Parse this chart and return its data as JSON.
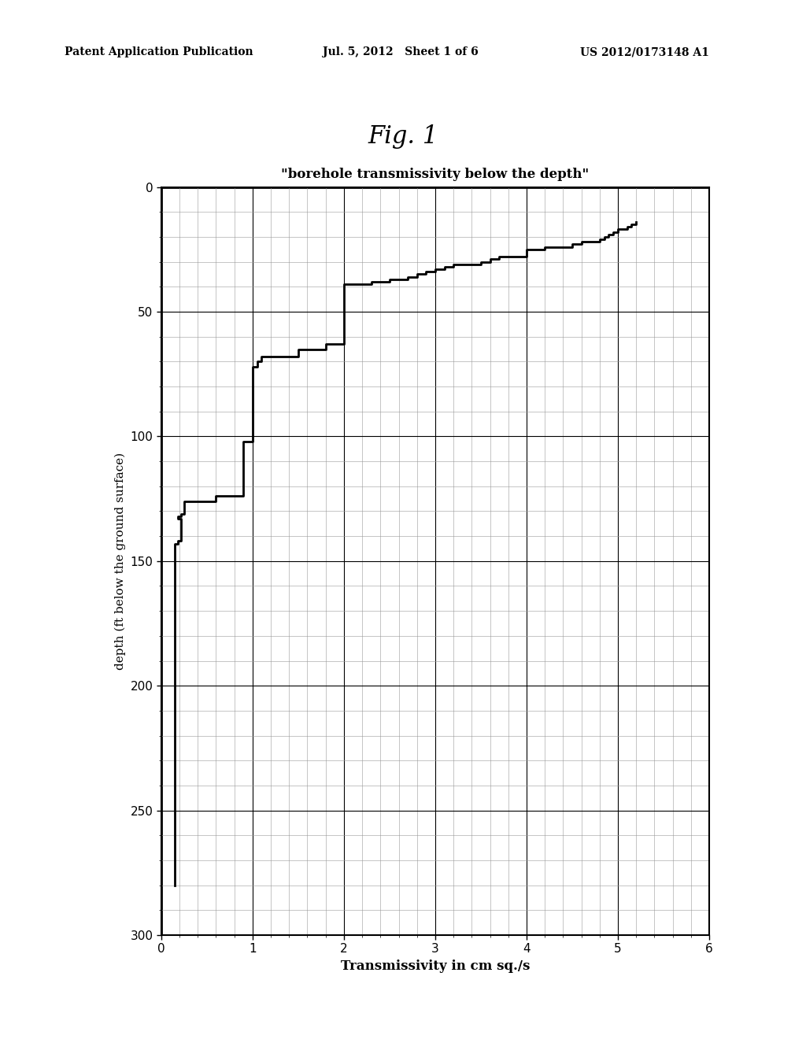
{
  "title": "\"borehole transmissivity below the depth\"",
  "xlabel": "Transmissivity in cm sq./s",
  "ylabel": "depth (ft below the ground surface)",
  "fig_label": "Fig. 1",
  "header_left": "Patent Application Publication",
  "header_center": "Jul. 5, 2012   Sheet 1 of 6",
  "header_right": "US 2012/0173148 A1",
  "xlim": [
    0,
    6
  ],
  "ylim": [
    0,
    300
  ],
  "xticks": [
    0,
    1,
    2,
    3,
    4,
    5,
    6
  ],
  "yticks": [
    0,
    50,
    100,
    150,
    200,
    250,
    300
  ],
  "x_minor_ticks": 5,
  "y_minor_ticks": 5,
  "line_color": "#000000",
  "line_width": 2.0,
  "background_color": "#ffffff",
  "curve_x": [
    0.15,
    0.15,
    0.15,
    0.15,
    0.15,
    0.15,
    0.15,
    0.15,
    0.15,
    0.15,
    0.15,
    0.15,
    0.15,
    0.15,
    0.15,
    0.15,
    0.15,
    0.15,
    0.15,
    0.15,
    0.15,
    0.15,
    0.15,
    0.15,
    0.15,
    0.15,
    0.15,
    0.15,
    0.15,
    0.15,
    0.15,
    0.15,
    0.15,
    0.15,
    0.15,
    0.15,
    0.15,
    0.15,
    0.15,
    0.15,
    0.15,
    0.18,
    0.18,
    0.22,
    0.22,
    0.22,
    0.22,
    0.22,
    0.22,
    0.22,
    0.22,
    0.22,
    0.22,
    0.18,
    0.18,
    0.22,
    0.22,
    0.25,
    0.25,
    0.25,
    0.25,
    0.6,
    0.6,
    0.9,
    0.9,
    0.9,
    0.9,
    0.9,
    0.9,
    0.9,
    0.9,
    0.9,
    0.9,
    0.9,
    0.9,
    1.0,
    1.0,
    1.0,
    1.0,
    1.0,
    1.0,
    1.0,
    1.0,
    1.0,
    1.0,
    1.0,
    1.0,
    1.0,
    1.0,
    1.0,
    1.0,
    1.05,
    1.05,
    1.1,
    1.1,
    1.5,
    1.5,
    1.8,
    1.8,
    2.0,
    2.0,
    2.0,
    2.0,
    2.0,
    2.0,
    2.0,
    2.0,
    2.0,
    2.0,
    2.0,
    2.0,
    2.0,
    2.3,
    2.3,
    2.5,
    2.5,
    2.7,
    2.7,
    2.8,
    2.8,
    2.9,
    2.9,
    3.0,
    3.0,
    3.1,
    3.1,
    3.2,
    3.2,
    3.5,
    3.5,
    3.6,
    3.6,
    3.7,
    3.7,
    4.0,
    4.0,
    4.0,
    4.0,
    4.2,
    4.2,
    4.5,
    4.5,
    4.6,
    4.6,
    4.8,
    4.8,
    4.85,
    4.85,
    4.9,
    4.9,
    4.95,
    4.95,
    5.0,
    5.0,
    5.1,
    5.1,
    5.15,
    5.15,
    5.2,
    5.2
  ],
  "curve_y": [
    280,
    275,
    270,
    265,
    260,
    255,
    250,
    245,
    240,
    235,
    230,
    225,
    220,
    215,
    210,
    205,
    200,
    195,
    190,
    185,
    180,
    180,
    175,
    175,
    173,
    172,
    171,
    170,
    168,
    166,
    164,
    162,
    160,
    158,
    156,
    154,
    152,
    150,
    148,
    146,
    143,
    143,
    142,
    142,
    141,
    140,
    139,
    138,
    137,
    136,
    135,
    134,
    133,
    133,
    132,
    132,
    131,
    131,
    130,
    128,
    126,
    126,
    124,
    124,
    122,
    120,
    118,
    116,
    114,
    112,
    110,
    108,
    106,
    104,
    102,
    102,
    100,
    98,
    96,
    94,
    92,
    90,
    88,
    86,
    84,
    82,
    80,
    78,
    76,
    74,
    72,
    72,
    70,
    70,
    68,
    68,
    65,
    65,
    63,
    63,
    61,
    59,
    57,
    55,
    53,
    51,
    49,
    47,
    45,
    43,
    41,
    39,
    39,
    38,
    38,
    37,
    37,
    36,
    36,
    35,
    35,
    34,
    34,
    33,
    33,
    32,
    32,
    31,
    31,
    30,
    30,
    29,
    29,
    28,
    28,
    27,
    26,
    25,
    25,
    24,
    24,
    23,
    23,
    22,
    22,
    21,
    21,
    20,
    20,
    19,
    19,
    18,
    18,
    17,
    17,
    16,
    16,
    15,
    15,
    14
  ]
}
